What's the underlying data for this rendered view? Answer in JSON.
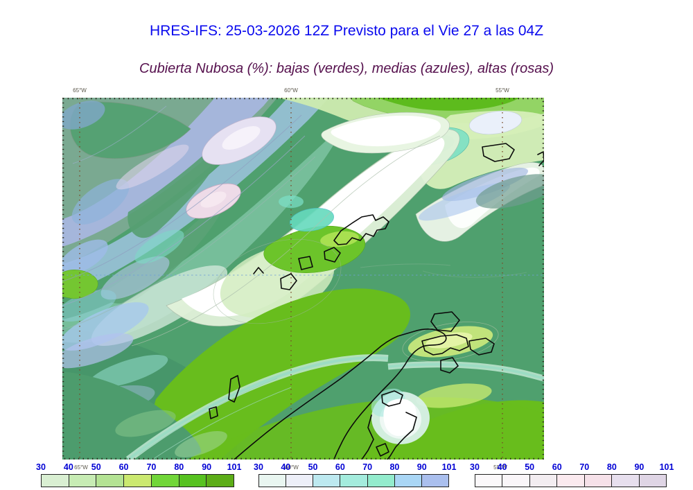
{
  "header": {
    "title": "HRES-IFS: 25-03-2026 12Z Previsto para el Vie 27 a las 04Z",
    "subtitle": "Cubierta Nubosa (%): bajas (verdes), medias (azules), altas (rosas)"
  },
  "colors": {
    "title_blue": "#0a0aee",
    "subtitle_purple": "#55104d",
    "tick_blue": "#0000d4",
    "map_base_green": "#4fa06e",
    "bright_green": "#68bd1d"
  },
  "map": {
    "top_axis_labels": [
      "65°W",
      "60°W",
      "55°W"
    ],
    "bottom_axis_labels": [
      "65°W",
      "60°W",
      "55°W"
    ]
  },
  "legends": [
    {
      "id": "low-clouds-green",
      "family": "bajas (verdes)",
      "ticks": [
        "30",
        "40",
        "50",
        "60",
        "70",
        "80",
        "90",
        "101"
      ],
      "segments": [
        "#d9efd2",
        "#c7ecb4",
        "#b4e394",
        "#cbe970",
        "#71d639",
        "#57c221",
        "#5cad18"
      ]
    },
    {
      "id": "mid-clouds-blue",
      "family": "medias (azules)",
      "ticks": [
        "30",
        "40",
        "50",
        "60",
        "70",
        "80",
        "90",
        "101"
      ],
      "segments": [
        "#e9f6f1",
        "#edeff8",
        "#bde9f0",
        "#a4ecdd",
        "#93eccd",
        "#a9d6f5",
        "#aabfee"
      ]
    },
    {
      "id": "high-clouds-pink",
      "family": "altas (rosas)",
      "ticks": [
        "30",
        "40",
        "50",
        "60",
        "70",
        "80",
        "90",
        "101"
      ],
      "segments": [
        "#fbf8fa",
        "#faf6f9",
        "#f3edf1",
        "#fbeaef",
        "#f6e1e9",
        "#e7dfee",
        "#dfd5e5"
      ]
    }
  ],
  "chart_data": {
    "type": "heatmap",
    "title": "HRES-IFS: 25-03-2026 12Z Previsto para el Vie 27 a las 04Z",
    "subtitle": "Cubierta Nubosa (%): bajas (verdes), medias (azules), altas (rosas)",
    "x_axis_labels": [
      "65°W",
      "60°W",
      "55°W"
    ],
    "variables": [
      {
        "name": "low cloud cover",
        "color_family": "verdes",
        "unit": "%",
        "levels": [
          30,
          40,
          50,
          60,
          70,
          80,
          90,
          101
        ]
      },
      {
        "name": "medium cloud cover",
        "color_family": "azules",
        "unit": "%",
        "levels": [
          30,
          40,
          50,
          60,
          70,
          80,
          90,
          101
        ]
      },
      {
        "name": "high cloud cover",
        "color_family": "rosas",
        "unit": "%",
        "levels": [
          30,
          40,
          50,
          60,
          70,
          80,
          90,
          101
        ]
      }
    ],
    "legend_position": "bottom"
  }
}
